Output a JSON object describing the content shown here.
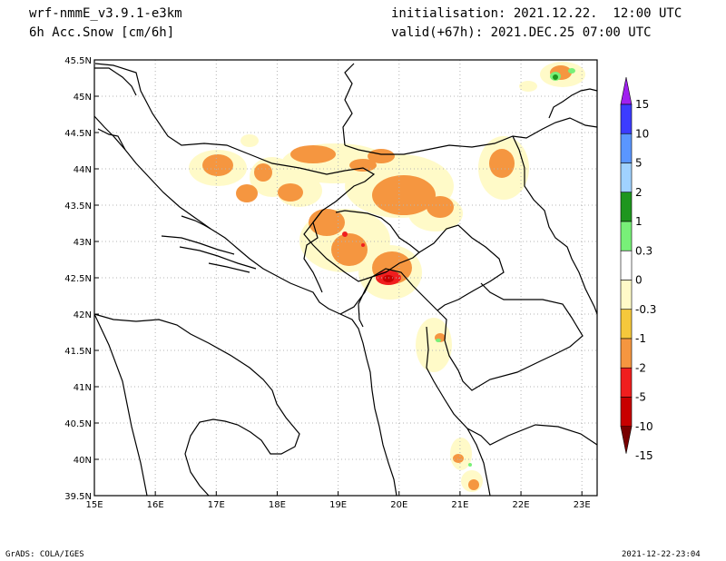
{
  "header": {
    "model": "wrf-nmmE_v3.9.1-e3km",
    "variable": "6h Acc.Snow [cm/6h]",
    "init": "initialisation: 2021.12.22.  12:00 UTC",
    "valid": "valid(+67h): 2021.DEC.25 07:00 UTC"
  },
  "footer": {
    "left": "GrADS: COLA/IGES",
    "right": "2021-12-22-23:04"
  },
  "map": {
    "lon_ticks": [
      "15E",
      "16E",
      "17E",
      "18E",
      "19E",
      "20E",
      "21E",
      "22E",
      "23E"
    ],
    "lat_ticks": [
      "45.5N",
      "45N",
      "44.5N",
      "44N",
      "43.5N",
      "43N",
      "42.5N",
      "42N",
      "41.5N",
      "41N",
      "40.5N",
      "40N",
      "39.5N"
    ]
  },
  "colorbar": {
    "labels": [
      "15",
      "10",
      "5",
      "2",
      "1",
      "0.3",
      "0",
      "-0.3",
      "-1",
      "-2",
      "-5",
      "-10",
      "-15"
    ],
    "colors": [
      "#a020f0",
      "#3c3cff",
      "#5a96ff",
      "#a0d2ff",
      "#1e961e",
      "#78f078",
      "#ffffff",
      "#fffac8",
      "#f5c83c",
      "#f59640",
      "#f01e1e",
      "#c80000",
      "#780000"
    ]
  }
}
